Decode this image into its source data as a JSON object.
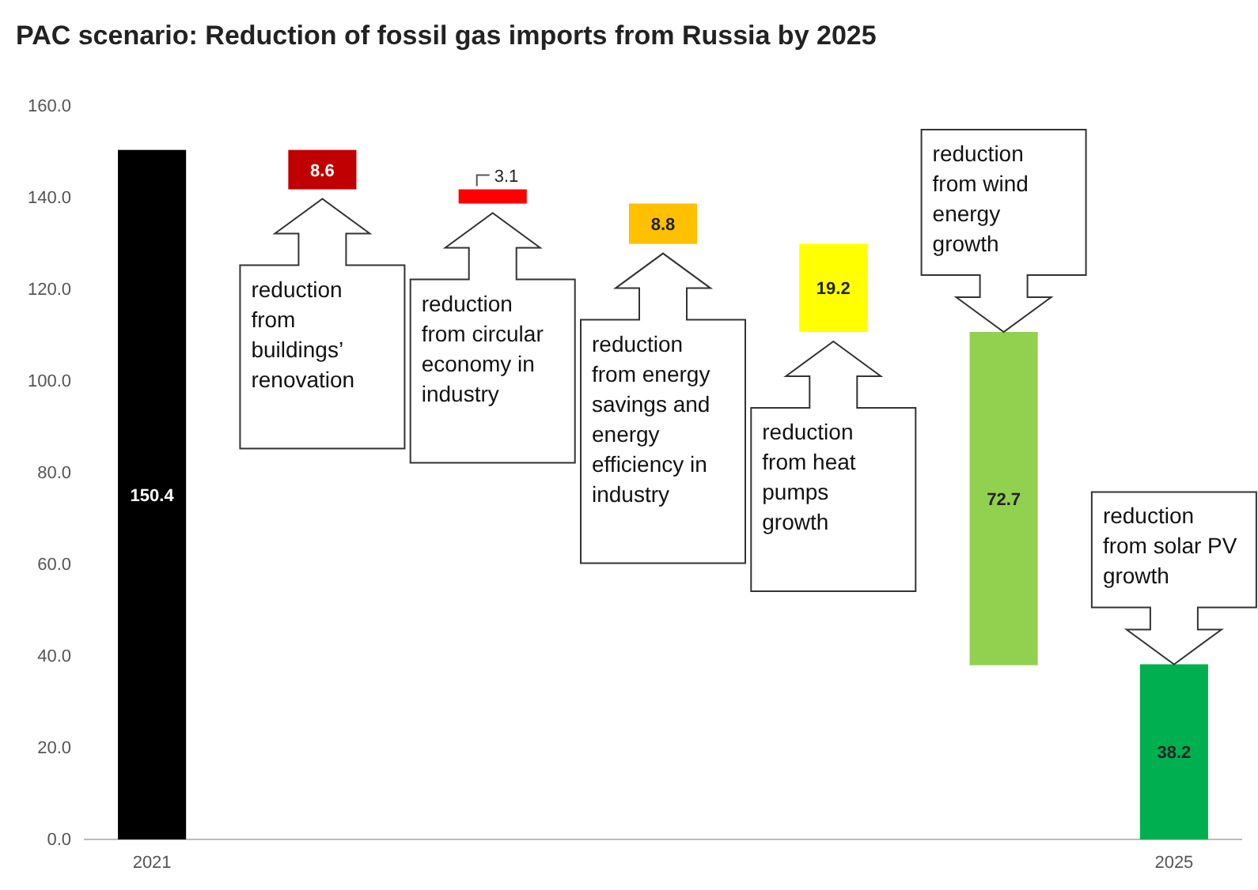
{
  "chart_data": {
    "type": "bar",
    "title": "PAC scenario: Reduction of fossil gas imports from Russia by 2025",
    "categories": [
      "2021",
      null,
      null,
      null,
      null,
      null,
      "2025"
    ],
    "values": [
      150.4,
      8.6,
      3.1,
      8.8,
      19.2,
      72.7,
      38.2
    ],
    "base": [
      0,
      141.8,
      138.7,
      129.9,
      110.7,
      38.0,
      0
    ],
    "colors": [
      "#000000",
      "#c00000",
      "#ff0000",
      "#ffc000",
      "#ffff00",
      "#92d050",
      "#00b050"
    ],
    "data_labels": true,
    "ylim": [
      0,
      160
    ],
    "yticks": [
      {
        "value": 0,
        "label": "0.0"
      },
      {
        "value": 20,
        "label": "20.0"
      },
      {
        "value": 40,
        "label": "40.0"
      },
      {
        "value": 60,
        "label": "60.0"
      },
      {
        "value": 80,
        "label": "80.0"
      },
      {
        "value": 100,
        "label": "100.0"
      },
      {
        "value": 120,
        "label": "120.0"
      },
      {
        "value": 140,
        "label": "140.0"
      },
      {
        "value": 160,
        "label": "160.0"
      }
    ],
    "grid": false,
    "annotations": [
      "reduction from buildings’ renovation",
      "reduction from circular economy in industry",
      "reduction from energy savings and energy efficiency in industry",
      "reduction from heat pumps growth",
      "reduction from wind energy growth",
      "reduction from solar PV growth"
    ]
  }
}
